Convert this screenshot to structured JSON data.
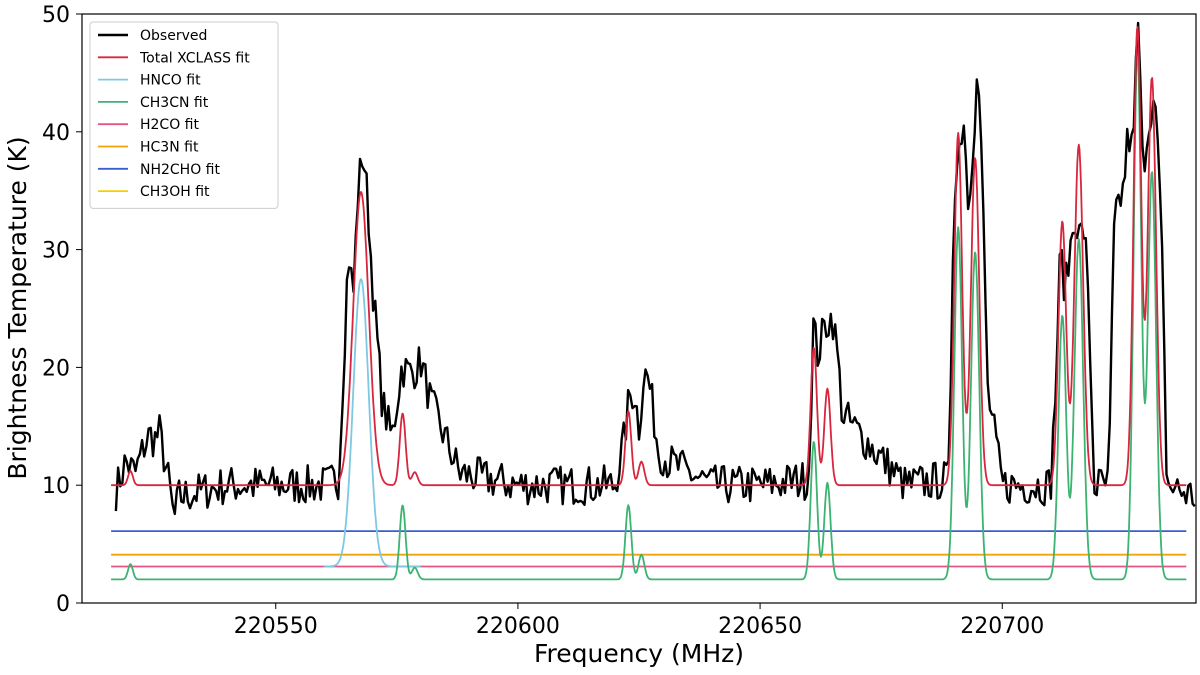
{
  "chart_data": {
    "type": "line",
    "xlabel": "Frequency (MHz)",
    "ylabel": "Brightness Temperature (K)",
    "xlim": [
      220510,
      220740
    ],
    "ylim": [
      0,
      50
    ],
    "x_ticks": [
      220550,
      220600,
      220650,
      220700
    ],
    "y_ticks": [
      0,
      10,
      20,
      30,
      40,
      50
    ],
    "grid": false,
    "legend_position": "top-left",
    "series": [
      {
        "name": "Observed",
        "color": "#000000",
        "style": "noisy-spectrum",
        "x": [
          220517,
          220519,
          220521,
          220523,
          220524,
          220525,
          220526,
          220528,
          220529,
          220530,
          220540,
          220550,
          220560,
          220563,
          220565,
          220566,
          220567,
          220568,
          220569,
          220570,
          220572,
          220574,
          220576,
          220578,
          220580,
          220582,
          220584,
          220586,
          220588,
          220600,
          220610,
          220620,
          220622,
          220623,
          220624,
          220625,
          220626,
          220627,
          220629,
          220631,
          220640,
          220650,
          220660,
          220661,
          220662,
          220663,
          220664,
          220665,
          220666,
          220667,
          220680,
          220689,
          220690,
          220692,
          220693,
          220694,
          220695,
          220696,
          220697,
          220700,
          220710,
          220711,
          220712,
          220713,
          220714,
          220715,
          220716,
          220717,
          220718,
          220719,
          220722,
          220723,
          220724,
          220725,
          220726,
          220727,
          220728,
          220729,
          220730,
          220731,
          220732,
          220733,
          220734,
          220740
        ],
        "y": [
          9.5,
          12,
          11,
          13.5,
          14.3,
          13.8,
          14.5,
          10,
          7,
          9,
          10,
          10,
          10,
          10.5,
          30,
          26,
          35,
          38.5,
          34,
          27,
          17,
          14,
          20,
          19.5,
          20.5,
          17,
          15,
          13,
          11,
          10,
          10,
          10,
          14,
          17.5,
          18,
          15,
          19.5,
          19,
          13,
          12,
          10,
          10,
          10.5,
          23.5,
          21,
          23,
          24,
          24.2,
          21,
          16,
          10,
          10.5,
          35,
          41.5,
          34,
          39.5,
          45.5,
          34,
          18,
          10,
          10,
          18,
          30,
          26.5,
          30,
          33,
          31,
          32,
          23,
          10,
          10,
          31,
          34,
          35,
          40,
          38,
          50,
          37,
          40,
          43,
          40,
          29,
          10,
          9
        ]
      },
      {
        "name": "Total XCLASS fit",
        "color": "#d7263d",
        "baseline": 10,
        "peaks": [
          {
            "center": 220520,
            "amplitude": 1.2,
            "sigma": 0.5
          },
          {
            "center": 220567.6,
            "amplitude": 24.9,
            "sigma": 1.6
          },
          {
            "center": 220576.2,
            "amplitude": 6.1,
            "sigma": 0.6
          },
          {
            "center": 220578.7,
            "amplitude": 1.1,
            "sigma": 0.6
          },
          {
            "center": 220622.8,
            "amplitude": 6.3,
            "sigma": 0.6
          },
          {
            "center": 220625.5,
            "amplitude": 2.0,
            "sigma": 0.6
          },
          {
            "center": 220661.1,
            "amplitude": 11.7,
            "sigma": 0.65
          },
          {
            "center": 220663.9,
            "amplitude": 8.2,
            "sigma": 0.65
          },
          {
            "center": 220690.9,
            "amplitude": 29.9,
            "sigma": 0.8
          },
          {
            "center": 220694.4,
            "amplitude": 27.8,
            "sigma": 0.85
          },
          {
            "center": 220712.4,
            "amplitude": 22.4,
            "sigma": 0.8
          },
          {
            "center": 220715.8,
            "amplitude": 28.9,
            "sigma": 0.9
          },
          {
            "center": 220727.9,
            "amplitude": 38.9,
            "sigma": 0.8
          },
          {
            "center": 220730.9,
            "amplitude": 34.6,
            "sigma": 0.85
          }
        ]
      },
      {
        "name": "HNCO fit",
        "color": "#7ec8e3",
        "baseline": 3.1,
        "x_range": [
          220560,
          220580
        ],
        "peaks": [
          {
            "center": 220567.6,
            "amplitude": 24.4,
            "sigma": 1.6
          }
        ]
      },
      {
        "name": "CH3CN fit",
        "color": "#3cb371",
        "baseline": 2,
        "peaks": [
          {
            "center": 220520,
            "amplitude": 1.3,
            "sigma": 0.5
          },
          {
            "center": 220576.2,
            "amplitude": 6.3,
            "sigma": 0.6
          },
          {
            "center": 220578.7,
            "amplitude": 1.0,
            "sigma": 0.6
          },
          {
            "center": 220622.8,
            "amplitude": 6.3,
            "sigma": 0.6
          },
          {
            "center": 220625.5,
            "amplitude": 2.1,
            "sigma": 0.6
          },
          {
            "center": 220661.1,
            "amplitude": 11.7,
            "sigma": 0.65
          },
          {
            "center": 220663.9,
            "amplitude": 8.2,
            "sigma": 0.65
          },
          {
            "center": 220690.9,
            "amplitude": 29.9,
            "sigma": 0.8
          },
          {
            "center": 220694.4,
            "amplitude": 27.8,
            "sigma": 0.85
          },
          {
            "center": 220712.4,
            "amplitude": 22.4,
            "sigma": 0.8
          },
          {
            "center": 220715.8,
            "amplitude": 28.9,
            "sigma": 0.9
          },
          {
            "center": 220727.9,
            "amplitude": 44.9,
            "sigma": 0.8
          },
          {
            "center": 220730.9,
            "amplitude": 34.6,
            "sigma": 0.85
          }
        ]
      },
      {
        "name": "H2CO fit",
        "color": "#e75480",
        "baseline": 3.1,
        "peaks": []
      },
      {
        "name": "HC3N fit",
        "color": "#f0a30a",
        "baseline": 4.1,
        "peaks": []
      },
      {
        "name": "NH2CHO fit",
        "color": "#3a5fcd",
        "baseline": 6.1,
        "peaks": []
      },
      {
        "name": "CH3OH fit",
        "color": "#f5d000",
        "baseline": null,
        "peaks": []
      }
    ]
  }
}
